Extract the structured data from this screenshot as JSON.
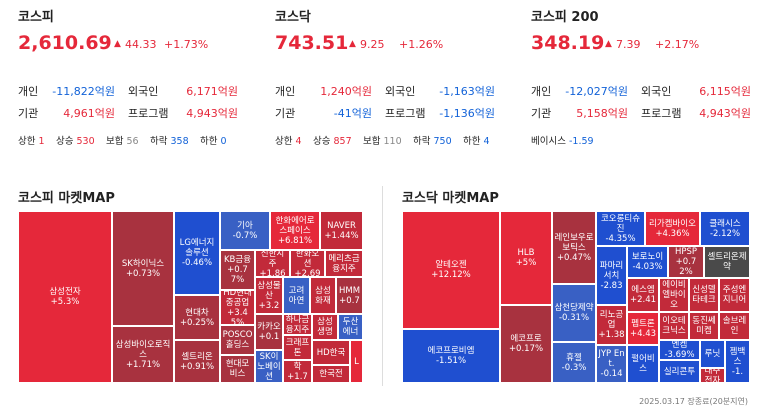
{
  "indices": [
    {
      "name": "코스피",
      "value": "2,610.69",
      "change": "44.33",
      "change_pct": "+1.73%",
      "investors": [
        {
          "label": "개인",
          "value": "-11,822억원"
        },
        {
          "label": "외국인",
          "value": "6,171억원"
        },
        {
          "label": "기관",
          "value": "4,961억원"
        },
        {
          "label": "프로그램",
          "value": "4,943억원"
        }
      ],
      "breadth": [
        {
          "label": "상한",
          "value": "1"
        },
        {
          "label": "상승",
          "value": "530"
        },
        {
          "label": "보합",
          "value": "56"
        },
        {
          "label": "하락",
          "value": "358"
        },
        {
          "label": "하한",
          "value": "0"
        }
      ]
    },
    {
      "name": "코스닥",
      "value": "743.51",
      "change": "9.25",
      "change_pct": "+1.26%",
      "investors": [
        {
          "label": "개인",
          "value": "1,240억원"
        },
        {
          "label": "외국인",
          "value": "-1,163억원"
        },
        {
          "label": "기관",
          "value": "-41억원"
        },
        {
          "label": "프로그램",
          "value": "-1,136억원"
        }
      ],
      "breadth": [
        {
          "label": "상한",
          "value": "4"
        },
        {
          "label": "상승",
          "value": "857"
        },
        {
          "label": "보합",
          "value": "110"
        },
        {
          "label": "하락",
          "value": "750"
        },
        {
          "label": "하한",
          "value": "4"
        }
      ]
    },
    {
      "name": "코스피 200",
      "value": "348.19",
      "change": "7.39",
      "change_pct": "+2.17%",
      "investors": [
        {
          "label": "개인",
          "value": "-12,027억원"
        },
        {
          "label": "외국인",
          "value": "6,115억원"
        },
        {
          "label": "기관",
          "value": "5,158억원"
        },
        {
          "label": "프로그램",
          "value": "4,943억원"
        }
      ],
      "breadth": [
        {
          "label": "베이시스",
          "value": "-1.59"
        }
      ]
    }
  ],
  "maps": [
    {
      "title": "코스피 마켓MAP",
      "cells": [
        {
          "name": "삼성전자",
          "change": "+5.3%"
        },
        {
          "name": "SK하이닉스",
          "change": "+0.73%"
        },
        {
          "name": "삼성바이오로직스",
          "change": "+1.71%"
        },
        {
          "name": "LG에너지솔루션",
          "change": "-0.46%"
        },
        {
          "name": "현대차",
          "change": "+0.25%"
        },
        {
          "name": "셀트리온",
          "change": "+0.91%"
        },
        {
          "name": "기아",
          "change": "-0.7%"
        },
        {
          "name": "한화에어로스페이스",
          "change": "+6.81%"
        },
        {
          "name": "NAVER",
          "change": "+1.44%"
        },
        {
          "name": "KB금융",
          "change": "+0.77%"
        },
        {
          "name": "신한지주",
          "change": "+1.86"
        },
        {
          "name": "한화오션",
          "change": "+2.69"
        },
        {
          "name": "메리츠금융지주"
        },
        {
          "name": "HD현대중공업",
          "change": "+3.45%"
        },
        {
          "name": "삼성물산",
          "change": "+3.2"
        },
        {
          "name": "고려아연"
        },
        {
          "name": "삼성화재"
        },
        {
          "name": "HMM",
          "change": "+0.7"
        },
        {
          "name": "POSCO홀딩스"
        },
        {
          "name": "카카오",
          "change": "+0.1"
        },
        {
          "name": "하나금융지주"
        },
        {
          "name": "삼성생명"
        },
        {
          "name": "두산에너"
        },
        {
          "name": "현대모비스"
        },
        {
          "name": "SK이노베이션"
        },
        {
          "name": "크래프톤"
        },
        {
          "name": "HD한국"
        },
        {
          "name": "L"
        },
        {
          "name": "LG화학",
          "change": "+1.73"
        },
        {
          "name": "한국전"
        }
      ]
    },
    {
      "title": "코스닥 마켓MAP",
      "cells": [
        {
          "name": "알테오젠",
          "change": "+12.12%"
        },
        {
          "name": "에코프로비엠",
          "change": "-1.51%"
        },
        {
          "name": "HLB",
          "change": "+5%"
        },
        {
          "name": "에코프로",
          "change": "+0.17%"
        },
        {
          "name": "레인보우로보틱스",
          "change": "+0.47%"
        },
        {
          "name": "삼천당제약",
          "change": "-0.31%"
        },
        {
          "name": "휴젤",
          "change": "-0.3%"
        },
        {
          "name": "코오롱티슈진",
          "change": "-4.35%"
        },
        {
          "name": "리가켐바이오",
          "change": "+4.36%"
        },
        {
          "name": "클래시스",
          "change": "-2.12%"
        },
        {
          "name": "파마리서치",
          "change": "-2.83"
        },
        {
          "name": "보로노이",
          "change": "-4.03%"
        },
        {
          "name": "HPSP",
          "change": "+0.72%"
        },
        {
          "name": "셀트리온제약"
        },
        {
          "name": "에스엠",
          "change": "+2.41"
        },
        {
          "name": "에이비엘바이오"
        },
        {
          "name": "신성델타테크"
        },
        {
          "name": "주성엔지니어"
        },
        {
          "name": "리노공업",
          "change": "+1.38"
        },
        {
          "name": "펩트론",
          "change": "+4.43"
        },
        {
          "name": "이오테크닉스"
        },
        {
          "name": "동진쎄미켐"
        },
        {
          "name": "솔브레인"
        },
        {
          "name": "JYP Ent.",
          "change": "-0.14"
        },
        {
          "name": "펄어비스"
        },
        {
          "name": "엔켐",
          "change": "-3.69%"
        },
        {
          "name": "루닛"
        },
        {
          "name": "젬백스",
          "change": "-1."
        },
        {
          "name": "실리콘투"
        },
        {
          "name": "대주전자"
        }
      ]
    }
  ],
  "footer": "2025.03.17 장종료(20분지연)"
}
